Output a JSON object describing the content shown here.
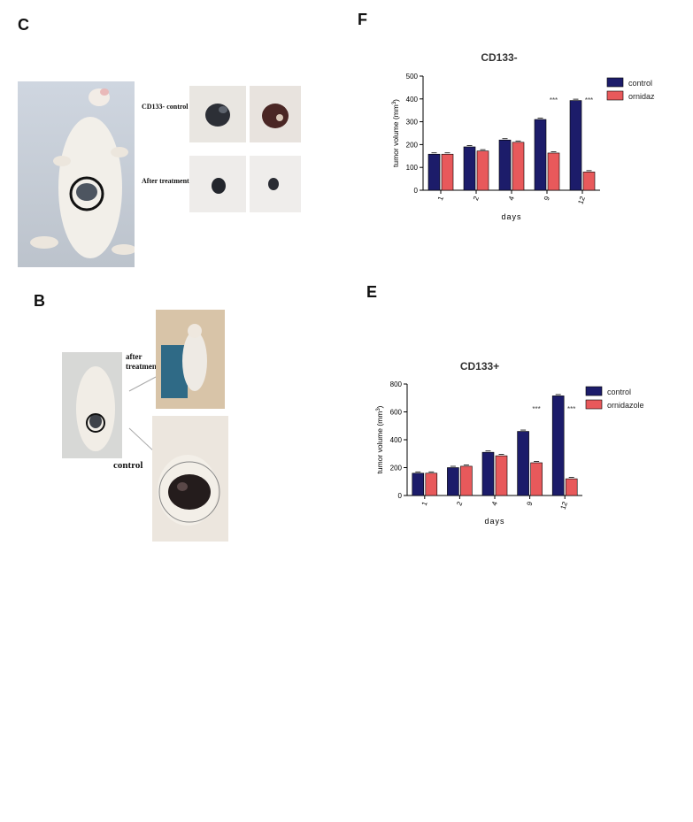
{
  "panel_letters": {
    "c": "C",
    "b": "B",
    "f": "F",
    "e": "E"
  },
  "photo_labels": {
    "cd133_control": "CD133- control",
    "after_treatment": "After treatment",
    "after_treatment_b": "after\ntreatment",
    "control_b": "control"
  },
  "colors": {
    "control": "#1c1c6a",
    "ornidazole": "#e8595b"
  },
  "chart_data": [
    {
      "id": "F",
      "type": "bar",
      "title": "CD133-",
      "xlabel": "days",
      "ylabel": "tumor volume (mm",
      "ylabel_sup": "3",
      "ylabel_end": ")",
      "categories": [
        "1",
        "2",
        "4",
        "9",
        "12"
      ],
      "ylim": [
        0,
        500
      ],
      "yticks": [
        0,
        100,
        200,
        300,
        400,
        500
      ],
      "series": [
        {
          "name": "control",
          "values": [
            158,
            190,
            220,
            310,
            393
          ]
        },
        {
          "name": "ornidazole",
          "values": [
            158,
            172,
            210,
            163,
            80
          ]
        }
      ],
      "annotations": [
        {
          "category": "9",
          "text": "***"
        },
        {
          "category": "12",
          "text": "***"
        }
      ],
      "legend": "top-right",
      "grid": false
    },
    {
      "id": "E",
      "type": "bar",
      "title": "CD133+",
      "xlabel": "days",
      "ylabel": "tumor volume (mm",
      "ylabel_sup": "3",
      "ylabel_end": ")",
      "categories": [
        "1",
        "2",
        "4",
        "9",
        "12"
      ],
      "ylim": [
        0,
        800
      ],
      "yticks": [
        0,
        200,
        400,
        600,
        800
      ],
      "series": [
        {
          "name": "control",
          "values": [
            160,
            200,
            310,
            460,
            715
          ]
        },
        {
          "name": "ornidazole",
          "values": [
            160,
            210,
            285,
            235,
            120
          ]
        }
      ],
      "annotations": [
        {
          "category": "9",
          "text": "***"
        },
        {
          "category": "12",
          "text": "***"
        }
      ],
      "legend": "top-right",
      "grid": false
    }
  ]
}
